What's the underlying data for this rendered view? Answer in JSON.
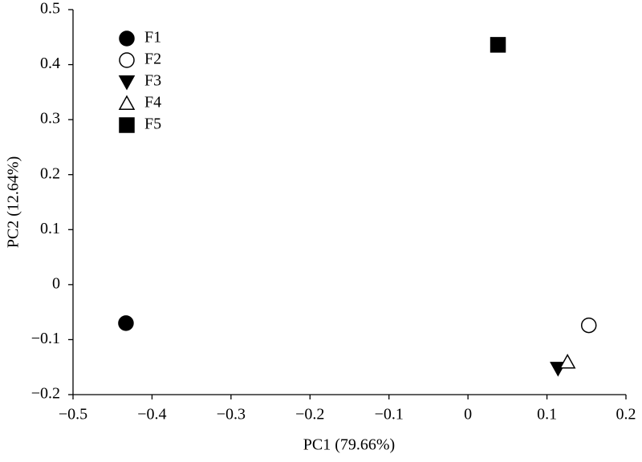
{
  "chart_data": {
    "type": "scatter",
    "x_label": "PC1 (79.66%)",
    "y_label": "PC2 (12.64%)",
    "xlim": [
      -0.5,
      0.2
    ],
    "xticks": [
      {
        "value": -0.5,
        "label": "−0.5"
      },
      {
        "value": -0.4,
        "label": "−0.4"
      },
      {
        "value": -0.3,
        "label": "−0.3"
      },
      {
        "value": -0.2,
        "label": "−0.2"
      },
      {
        "value": -0.1,
        "label": "−0.1"
      },
      0,
      0.1,
      0.2
    ],
    "ylim": [
      -0.2,
      0.5
    ],
    "yticks": [
      {
        "value": -0.2,
        "label": "−0.2"
      },
      {
        "value": -0.1,
        "label": "−0.1"
      },
      0,
      0.1,
      0.2,
      0.3,
      0.4,
      0.5
    ],
    "grid": false,
    "legend": "upper-left",
    "series": [
      {
        "name": "F1",
        "color": "#000000",
        "marker": "circle",
        "x": [
          -0.433
        ],
        "values": [
          -0.07
        ]
      },
      {
        "name": "F2",
        "color": "#000000",
        "marker": "circle-open",
        "x": [
          0.153
        ],
        "values": [
          -0.074
        ]
      },
      {
        "name": "F3",
        "color": "#000000",
        "marker": "triangle-down",
        "x": [
          0.114
        ],
        "values": [
          -0.152
        ]
      },
      {
        "name": "F4",
        "color": "#000000",
        "marker": "triangle-up-open",
        "x": [
          0.126
        ],
        "values": [
          -0.141
        ]
      },
      {
        "name": "F5",
        "color": "#000000",
        "marker": "square",
        "x": [
          0.038
        ],
        "values": [
          0.436
        ]
      }
    ]
  }
}
